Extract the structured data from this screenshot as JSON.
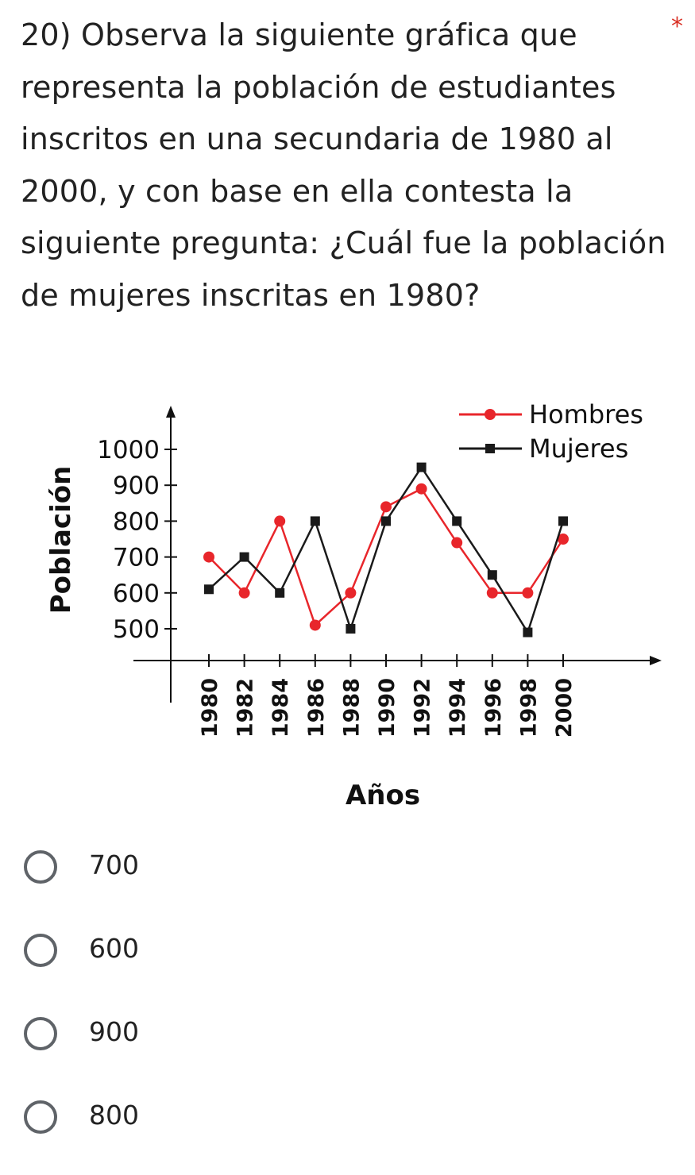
{
  "question": {
    "text": "20) Observa la siguiente gráfica que representa la población de estudiantes inscritos en una secundaria de 1980 al 2000, y con base en ella contesta la siguiente pregunta: ¿Cuál fue la población de mujeres inscritas en 1980?",
    "required_marker": "*",
    "required_color": "#d93025"
  },
  "chart_data": {
    "type": "line",
    "xlabel": "Años",
    "ylabel": "Población",
    "x": [
      "1980",
      "1982",
      "1984",
      "1986",
      "1988",
      "1990",
      "1992",
      "1994",
      "1996",
      "1998",
      "2000"
    ],
    "y_ticks": [
      "500",
      "600",
      "700",
      "800",
      "900",
      "1000"
    ],
    "ylim": [
      400,
      1100
    ],
    "legend_position": "top-right",
    "grid": false,
    "series": [
      {
        "name": "Hombres",
        "color": "#e8262b",
        "marker": "circle",
        "values": [
          700,
          600,
          800,
          510,
          600,
          840,
          890,
          740,
          600,
          600,
          750
        ]
      },
      {
        "name": "Mujeres",
        "color": "#1a1a1a",
        "marker": "square",
        "values": [
          610,
          700,
          600,
          800,
          500,
          800,
          950,
          800,
          650,
          490,
          800
        ]
      }
    ]
  },
  "options": [
    {
      "label": "700"
    },
    {
      "label": "600"
    },
    {
      "label": "900"
    },
    {
      "label": "800"
    }
  ]
}
